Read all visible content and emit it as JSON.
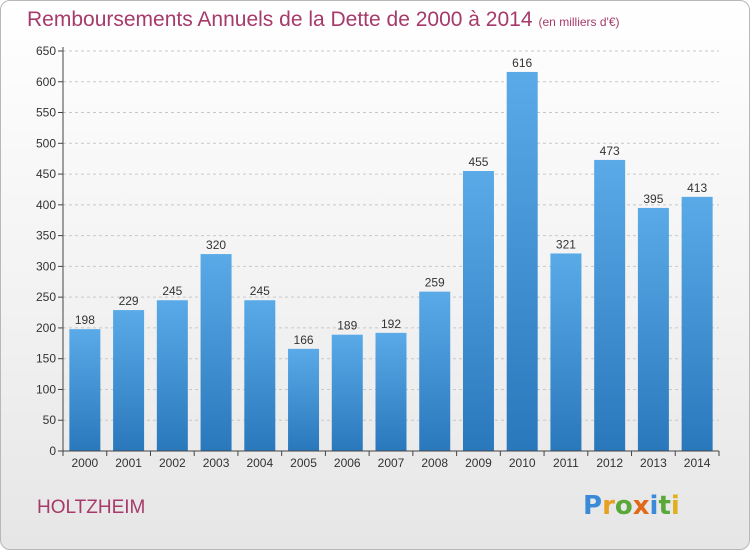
{
  "header": {
    "title": "Remboursements Annuels de la Dette de 2000 à 2014",
    "unit": "(en milliers d'€)"
  },
  "footer": {
    "commune": "HOLTZHEIM",
    "logo_text": "Proxiti"
  },
  "colors": {
    "title": "#a63a6a",
    "bar_top": "#5aaae8",
    "bar_bottom": "#2a78bc",
    "axis": "#444444",
    "grid": "#c8c8c8"
  },
  "chart_data": {
    "type": "bar",
    "title": "Remboursements Annuels de la Dette de 2000 à 2014",
    "xlabel": "",
    "ylabel": "",
    "categories": [
      "2000",
      "2001",
      "2002",
      "2003",
      "2004",
      "2005",
      "2006",
      "2007",
      "2008",
      "2009",
      "2010",
      "2011",
      "2012",
      "2013",
      "2014"
    ],
    "values": [
      198,
      229,
      245,
      320,
      245,
      166,
      189,
      192,
      259,
      455,
      616,
      321,
      473,
      395,
      413
    ],
    "ylim": [
      0,
      650
    ],
    "yticks": [
      0,
      50,
      100,
      150,
      200,
      250,
      300,
      350,
      400,
      450,
      500,
      550,
      600,
      650
    ],
    "grid": "horizontal dashed",
    "data_labels": true
  }
}
